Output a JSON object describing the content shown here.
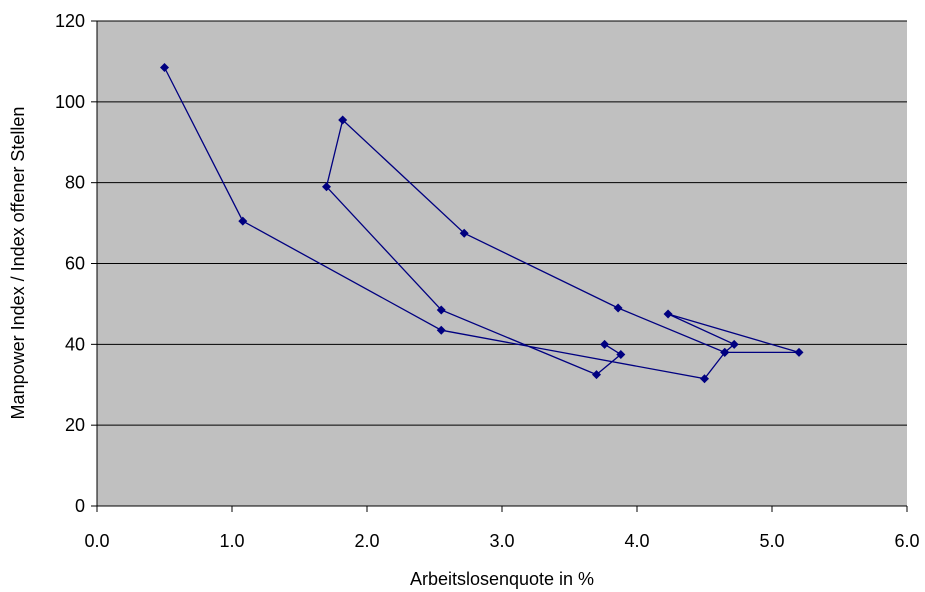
{
  "chart_data": {
    "type": "line",
    "title": "",
    "xlabel": "Arbeitslosenquote in %",
    "ylabel": "Manpower Index / Index offener Stellen",
    "xlim": [
      0,
      6
    ],
    "ylim": [
      0,
      120
    ],
    "x_ticks": [
      "0.0",
      "1.0",
      "2.0",
      "3.0",
      "4.0",
      "5.0",
      "6.0"
    ],
    "y_ticks": [
      "0",
      "20",
      "40",
      "60",
      "80",
      "100",
      "120"
    ],
    "grid": "horizontal",
    "colors": {
      "plot_background": "#c0c0c0",
      "series": "#000080",
      "grid": "#000000"
    },
    "series": [
      {
        "marker": "diamond",
        "points": [
          {
            "x": 0.5,
            "y": 108.5
          },
          {
            "x": 1.08,
            "y": 70.5
          },
          {
            "x": 2.55,
            "y": 43.5
          },
          {
            "x": 4.5,
            "y": 31.5
          },
          {
            "x": 4.65,
            "y": 38.0
          },
          {
            "x": 5.2,
            "y": 38.0
          },
          {
            "x": 4.23,
            "y": 47.5
          },
          {
            "x": 4.72,
            "y": 40.0
          },
          {
            "x": 4.65,
            "y": 38.0
          },
          {
            "x": 3.86,
            "y": 49.0
          },
          {
            "x": 2.72,
            "y": 67.5
          },
          {
            "x": 1.82,
            "y": 95.5
          },
          {
            "x": 1.7,
            "y": 79.0
          },
          {
            "x": 2.55,
            "y": 48.5
          },
          {
            "x": 3.7,
            "y": 32.5
          },
          {
            "x": 3.88,
            "y": 37.5
          },
          {
            "x": 3.76,
            "y": 40.0
          }
        ]
      }
    ]
  }
}
